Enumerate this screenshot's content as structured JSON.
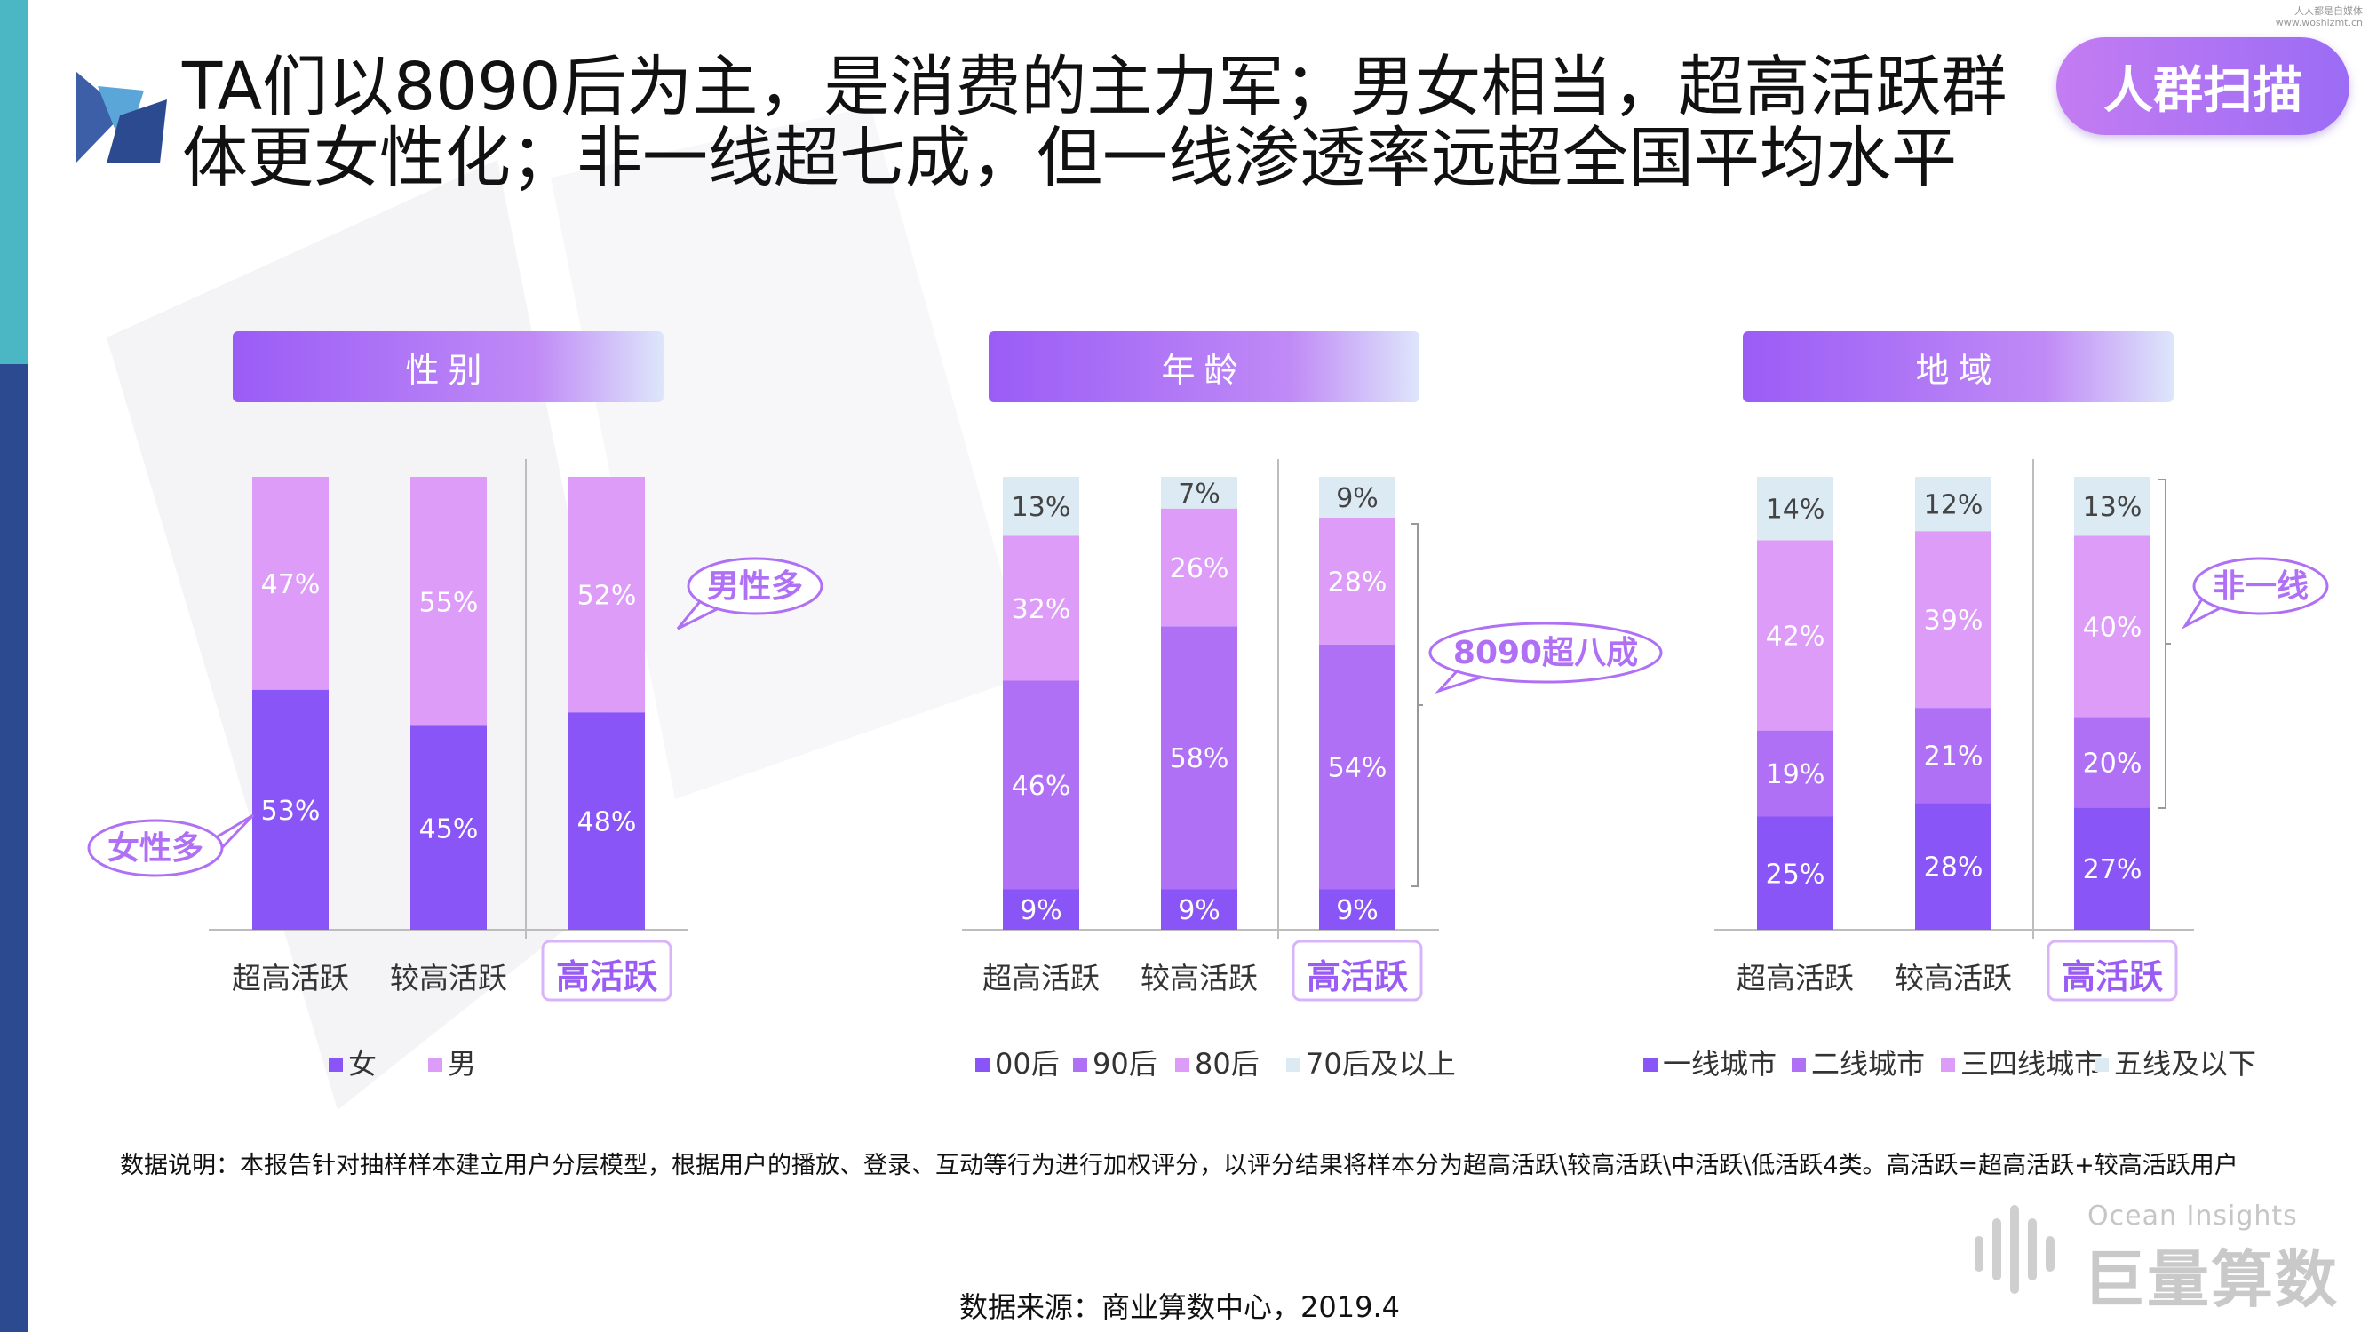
{
  "title": "TA们以8090后为主，是消费的主力军；男女相当，超高活跃群\n体更女性化；非一线超七成，但一线渗透率远超全国平均水平",
  "badge": "人群扫描",
  "watermark": {
    "line1": "人人都是自媒体",
    "line2": "www.woshizmt.cn"
  },
  "colors": {
    "women": "#8a55f6",
    "men": "#dd9cf7",
    "age_00": "#8a55f6",
    "age_90": "#b070f6",
    "age_80": "#dd9cf7",
    "age_70": "#dceaf4",
    "tier1": "#8a55f6",
    "tier2": "#b070f6",
    "tier34": "#dd9cf7",
    "tier5": "#dceaf4",
    "accent": "#9b5cf6"
  },
  "panels": [
    {
      "header": "性别",
      "chart_data": {
        "type": "bar",
        "stacked": true,
        "categories": [
          "超高活跃",
          "较高活跃",
          "高活跃"
        ],
        "series": [
          {
            "name": "女",
            "values": [
              53,
              45,
              48
            ]
          },
          {
            "name": "男",
            "values": [
              47,
              55,
              52
            ]
          }
        ],
        "ylim": [
          0,
          100
        ],
        "legend": "bottom",
        "callouts": [
          "男性多",
          "女性多"
        ]
      }
    },
    {
      "header": "年龄",
      "chart_data": {
        "type": "bar",
        "stacked": true,
        "categories": [
          "超高活跃",
          "较高活跃",
          "高活跃"
        ],
        "series": [
          {
            "name": "00后",
            "values": [
              9,
              9,
              9
            ]
          },
          {
            "name": "90后",
            "values": [
              46,
              58,
              54
            ]
          },
          {
            "name": "80后",
            "values": [
              32,
              26,
              28
            ]
          },
          {
            "name": "70后及以上",
            "values": [
              13,
              7,
              9
            ]
          }
        ],
        "ylim": [
          0,
          100
        ],
        "legend": "bottom",
        "callouts": [
          "8090超八成"
        ]
      }
    },
    {
      "header": "地域",
      "chart_data": {
        "type": "bar",
        "stacked": true,
        "categories": [
          "超高活跃",
          "较高活跃",
          "高活跃"
        ],
        "series": [
          {
            "name": "一线城市",
            "values": [
              25,
              28,
              27
            ]
          },
          {
            "name": "二线城市",
            "values": [
              19,
              21,
              20
            ]
          },
          {
            "name": "三四线城市",
            "values": [
              42,
              39,
              40
            ]
          },
          {
            "name": "五线及以下",
            "values": [
              14,
              12,
              13
            ]
          }
        ],
        "ylim": [
          0,
          100
        ],
        "legend": "bottom",
        "callouts": [
          "非一线"
        ]
      }
    }
  ],
  "note": "数据说明：本报告针对抽样样本建立用户分层模型，根据用户的播放、登录、互动等行为进行加权评分，以评分结果将样本分为超高活跃\\较高活跃\\中活跃\\低活跃4类。高活跃=超高活跃+较高活跃用户",
  "source": "数据来源：商业算数中心，2019.4",
  "logo": {
    "en": "Ocean Insights",
    "cn": "巨量算数"
  }
}
